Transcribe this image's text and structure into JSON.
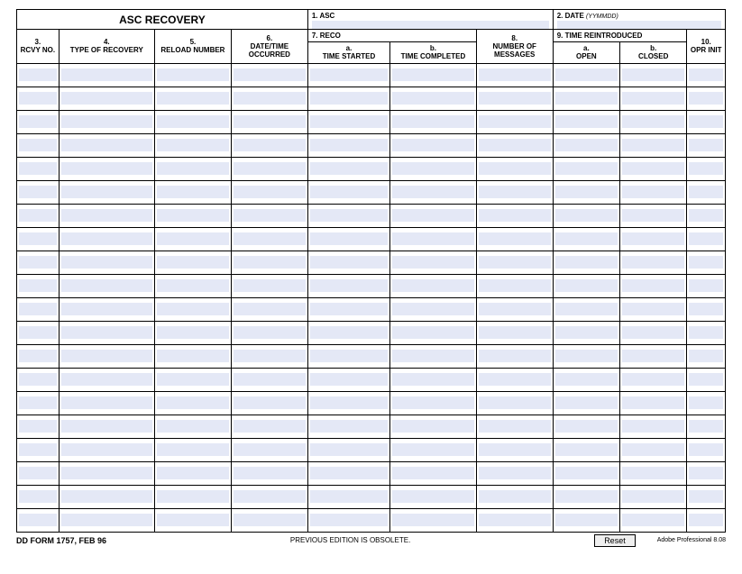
{
  "form": {
    "title": "ASC RECOVERY",
    "field1_label": "1.  ASC",
    "field2_label": "2.  DATE",
    "field2_hint": "(YYMMDD)",
    "columns": {
      "c3_num": "3.",
      "c3_label": "RCVY NO.",
      "c4_num": "4.",
      "c4_label": "TYPE OF RECOVERY",
      "c5_num": "5.",
      "c5_label": "RELOAD NUMBER",
      "c6_num": "6.",
      "c6_label": "DATE/TIME OCCURRED",
      "c7_num": "7.  RECO",
      "c7a_label": "a.",
      "c7a_label2": "TIME STARTED",
      "c7b_label": "b.",
      "c7b_label2": "TIME COMPLETED",
      "c8_num": "8.",
      "c8_label": "NUMBER OF MESSAGES",
      "c9_num": "9.  TIME REINTRODUCED",
      "c9a_label": "a.",
      "c9a_label2": "OPEN",
      "c9b_label": "b.",
      "c9b_label2": "CLOSED",
      "c10_num": "10.",
      "c10_label": "OPR INIT"
    },
    "row_count": 20,
    "footer_form": "DD FORM 1757, FEB 96",
    "footer_obsolete": "PREVIOUS EDITION IS OBSOLETE.",
    "reset_label": "Reset",
    "footer_adobe": "Adobe Professional 8.08"
  },
  "colors": {
    "fill": "#e4e8f6",
    "border": "#000000",
    "background": "#ffffff"
  }
}
